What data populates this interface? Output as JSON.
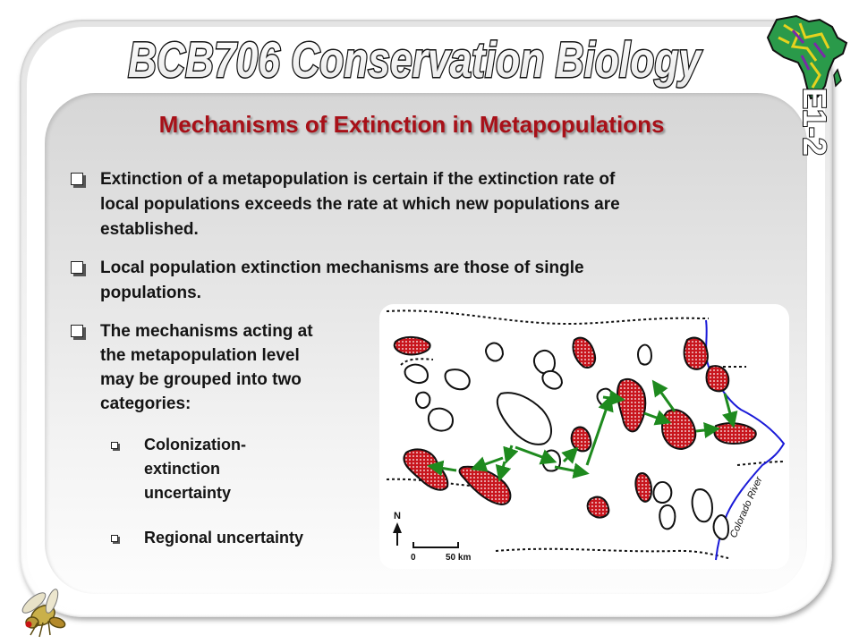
{
  "header": {
    "course_title": "BCB706 Conservation Biology",
    "slide_number": "E1-2",
    "logo": "africa-map-logo"
  },
  "slide": {
    "title": "Mechanisms of Extinction in Metapopulations",
    "bullets": [
      "Extinction of a metapopulation is certain if the extinction rate of",
      "local populations exceeds the rate at which new populations are",
      "established.",
      "Local population extinction mechanisms are those of single",
      "populations.",
      "The mechanisms acting at",
      "the metapopulation level",
      "may be grouped into two",
      "categories:"
    ],
    "sub_bullets": [
      "Colonization-",
      "extinction",
      "uncertainty",
      "Regional uncertainty"
    ]
  },
  "map": {
    "river_label": "Colorado River",
    "north_label": "N",
    "scale_start": "0",
    "scale_end": "50 km",
    "colors": {
      "occupied_fill": "#c8161e",
      "empty_fill": "#ffffff",
      "dispersal_arrow": "#1e8a1e",
      "river": "#1a1ad8",
      "title": "#a81018"
    }
  },
  "decor": {
    "icon": "fruit-fly-icon"
  }
}
